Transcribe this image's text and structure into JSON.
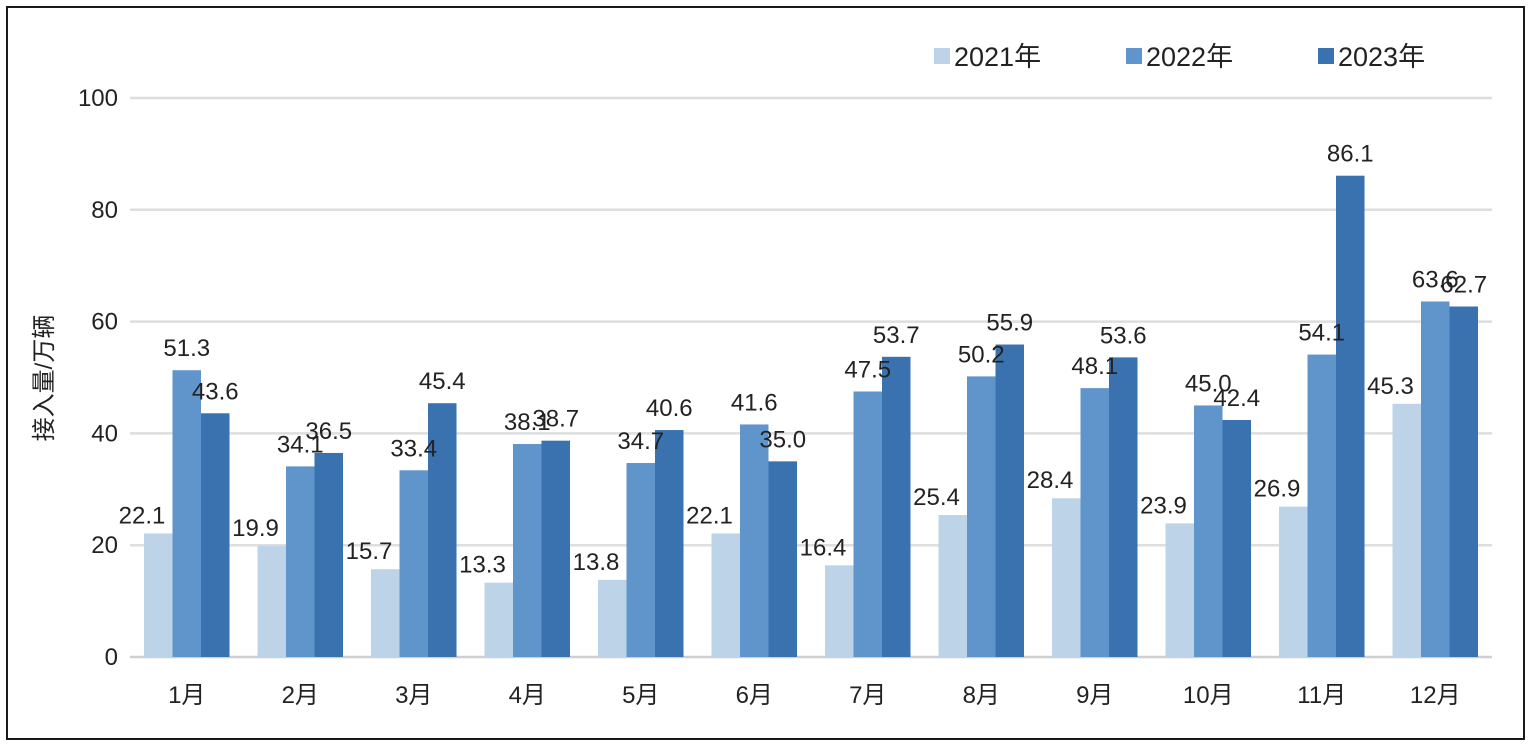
{
  "chart_data": {
    "type": "bar",
    "ylabel": "接入量/万辆",
    "xlabel": "",
    "ylim": [
      0,
      100
    ],
    "yticks": [
      0,
      20,
      40,
      60,
      80,
      100
    ],
    "grid": true,
    "legend_position": "top-right",
    "categories": [
      "1月",
      "2月",
      "3月",
      "4月",
      "5月",
      "6月",
      "7月",
      "8月",
      "9月",
      "10月",
      "11月",
      "12月"
    ],
    "series": [
      {
        "name": "2021年",
        "color": "#BDD3E8",
        "values": [
          22.1,
          19.9,
          15.7,
          13.3,
          13.8,
          22.1,
          16.4,
          25.4,
          28.4,
          23.9,
          26.9,
          45.3
        ]
      },
      {
        "name": "2022年",
        "color": "#5F95CB",
        "values": [
          51.3,
          34.1,
          33.4,
          38.1,
          34.7,
          41.6,
          47.5,
          50.2,
          48.1,
          45.0,
          54.1,
          63.6
        ]
      },
      {
        "name": "2023年",
        "color": "#3A72B0",
        "values": [
          43.6,
          36.5,
          45.4,
          38.7,
          40.6,
          35.0,
          53.7,
          55.9,
          53.6,
          42.4,
          86.1,
          62.7
        ]
      }
    ]
  }
}
